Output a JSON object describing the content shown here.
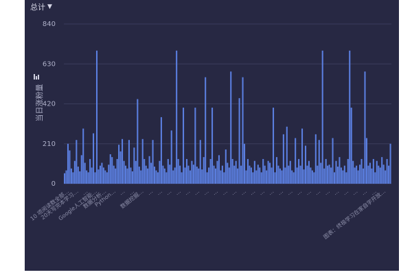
{
  "selector": {
    "label": "总计",
    "icon": "chevron-down-icon"
  },
  "chart_data": {
    "type": "bar",
    "ylabel": "当日涨粉量",
    "ylim": [
      0,
      840
    ],
    "yticks": [
      0,
      210,
      420,
      630,
      840
    ],
    "grid": true,
    "bar_color": "#5b7fe0",
    "xtick_labels": [
      "10 项阅读数全部…",
      "20天写完本学习…",
      "…",
      "Google人工智能…",
      "数据分析…",
      "Python…",
      "…",
      "…",
      "数据挖掘…",
      "…",
      "…",
      "…",
      "…",
      "…",
      "…",
      "…",
      "…",
      "…",
      "…",
      "…",
      "…",
      "…",
      "…",
      "…",
      "…",
      "…",
      "…",
      "…",
      "…",
      "…",
      "…",
      "…",
      "…",
      "…",
      "图表：终极学习在家自学开放…"
    ],
    "values": [
      55,
      70,
      210,
      175,
      80,
      60,
      120,
      230,
      90,
      65,
      150,
      290,
      110,
      70,
      60,
      130,
      85,
      265,
      60,
      700,
      75,
      95,
      110,
      85,
      70,
      60,
      100,
      155,
      140,
      95,
      80,
      130,
      205,
      170,
      235,
      120,
      95,
      80,
      230,
      85,
      65,
      190,
      120,
      445,
      90,
      70,
      235,
      130,
      95,
      80,
      145,
      110,
      230,
      90,
      70,
      60,
      120,
      350,
      95,
      80,
      60,
      130,
      100,
      280,
      70,
      85,
      700,
      130,
      95,
      60,
      400,
      85,
      130,
      95,
      70,
      120,
      100,
      400,
      90,
      80,
      230,
      75,
      140,
      560,
      60,
      85,
      130,
      400,
      95,
      80,
      120,
      150,
      70,
      95,
      60,
      180,
      110,
      85,
      590,
      130,
      95,
      120,
      80,
      450,
      95,
      560,
      210,
      70,
      130,
      95,
      85,
      60,
      120,
      70,
      100,
      85,
      60,
      130,
      95,
      70,
      120,
      110,
      85,
      400,
      60,
      140,
      95,
      80,
      70,
      260,
      85,
      300,
      95,
      120,
      70,
      60,
      240,
      85,
      130,
      95,
      290,
      75,
      200,
      95,
      120,
      85,
      70,
      60,
      260,
      95,
      230,
      110,
      700,
      80,
      130,
      95,
      100,
      85,
      240,
      60,
      120,
      90,
      140,
      85,
      70,
      95,
      60,
      130,
      700,
      400,
      120,
      85,
      95,
      70,
      100,
      130,
      80,
      590,
      240,
      95,
      110,
      80,
      130,
      60,
      120,
      95,
      85,
      140,
      100,
      70,
      130,
      95,
      210
    ]
  }
}
